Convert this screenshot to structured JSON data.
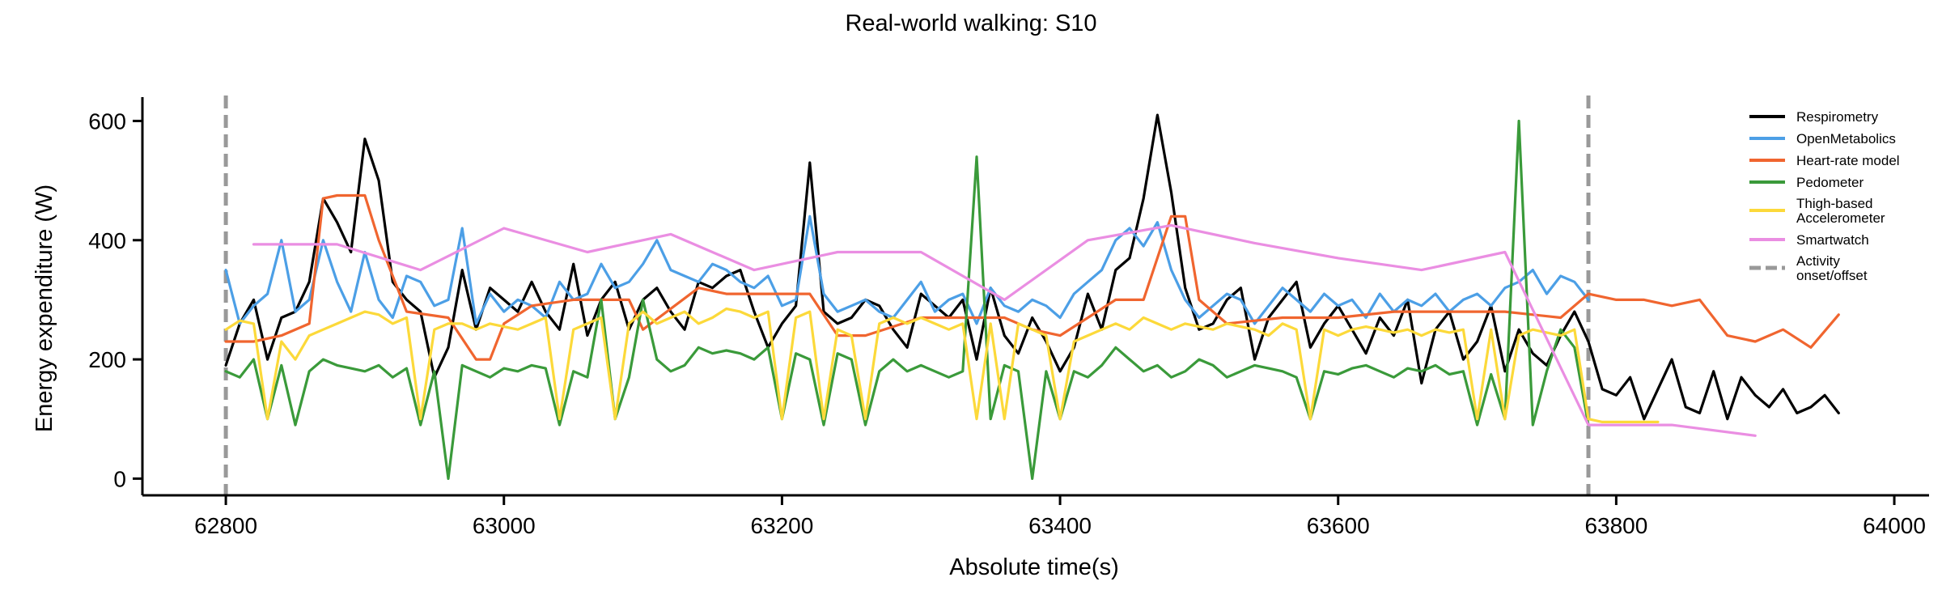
{
  "chart_data": {
    "type": "line",
    "title": "Real-world walking: S10",
    "xlabel": "Absolute time(s)",
    "ylabel": "Energy expenditure (W)",
    "xlim": [
      62740,
      64025
    ],
    "ylim": [
      -28,
      640
    ],
    "xticks": [
      62800,
      63000,
      63200,
      63400,
      63600,
      63800,
      64000
    ],
    "yticks": [
      0,
      200,
      400,
      600
    ],
    "grid": false,
    "legend_position": "top-right",
    "activity_markers": {
      "label": "Activity\nonset/offset",
      "x": [
        62800,
        63780
      ],
      "color": "#999999"
    },
    "series": [
      {
        "name": "Respirometry",
        "color": "#000000",
        "x": [
          62800,
          62810,
          62820,
          62830,
          62840,
          62850,
          62860,
          62870,
          62880,
          62890,
          62900,
          62910,
          62920,
          62930,
          62940,
          62950,
          62960,
          62970,
          62980,
          62990,
          63000,
          63010,
          63020,
          63030,
          63040,
          63050,
          63060,
          63070,
          63080,
          63090,
          63100,
          63110,
          63120,
          63130,
          63140,
          63150,
          63160,
          63170,
          63180,
          63190,
          63200,
          63210,
          63220,
          63230,
          63240,
          63250,
          63260,
          63270,
          63280,
          63290,
          63300,
          63310,
          63320,
          63330,
          63340,
          63350,
          63360,
          63370,
          63380,
          63390,
          63400,
          63410,
          63420,
          63430,
          63440,
          63450,
          63460,
          63470,
          63480,
          63490,
          63500,
          63510,
          63520,
          63530,
          63540,
          63550,
          63560,
          63570,
          63580,
          63590,
          63600,
          63610,
          63620,
          63630,
          63640,
          63650,
          63660,
          63670,
          63680,
          63690,
          63700,
          63710,
          63720,
          63730,
          63740,
          63750,
          63760,
          63770,
          63780,
          63790,
          63800,
          63810,
          63820,
          63830,
          63840,
          63850,
          63860,
          63870,
          63880,
          63890,
          63900,
          63910,
          63920,
          63930,
          63940,
          63950,
          63960
        ],
        "values": [
          190,
          260,
          300,
          200,
          270,
          280,
          330,
          470,
          430,
          380,
          570,
          500,
          330,
          300,
          280,
          170,
          220,
          350,
          250,
          320,
          300,
          280,
          330,
          280,
          250,
          360,
          240,
          300,
          330,
          250,
          300,
          320,
          280,
          250,
          330,
          320,
          340,
          350,
          280,
          220,
          260,
          290,
          530,
          280,
          260,
          270,
          300,
          290,
          250,
          220,
          310,
          290,
          270,
          300,
          200,
          320,
          240,
          210,
          270,
          230,
          180,
          220,
          310,
          250,
          350,
          370,
          470,
          610,
          480,
          320,
          250,
          260,
          300,
          320,
          200,
          270,
          300,
          330,
          220,
          260,
          290,
          250,
          210,
          270,
          240,
          300,
          160,
          250,
          280,
          200,
          230,
          290,
          180,
          250,
          210,
          190,
          240,
          280,
          230,
          150,
          140,
          170,
          100,
          150,
          200,
          120,
          110,
          180,
          100,
          170,
          140,
          120,
          150,
          110,
          120,
          140,
          110
        ]
      },
      {
        "name": "OpenMetabolics",
        "color": "#4c9fe6",
        "x": [
          62800,
          62810,
          62820,
          62830,
          62840,
          62850,
          62860,
          62870,
          62880,
          62890,
          62900,
          62910,
          62920,
          62930,
          62940,
          62950,
          62960,
          62970,
          62980,
          62990,
          63000,
          63010,
          63020,
          63030,
          63040,
          63050,
          63060,
          63070,
          63080,
          63090,
          63100,
          63110,
          63120,
          63130,
          63140,
          63150,
          63160,
          63170,
          63180,
          63190,
          63200,
          63210,
          63220,
          63230,
          63240,
          63250,
          63260,
          63270,
          63280,
          63290,
          63300,
          63310,
          63320,
          63330,
          63340,
          63350,
          63360,
          63370,
          63380,
          63390,
          63400,
          63410,
          63420,
          63430,
          63440,
          63450,
          63460,
          63470,
          63480,
          63490,
          63500,
          63510,
          63520,
          63530,
          63540,
          63550,
          63560,
          63570,
          63580,
          63590,
          63600,
          63610,
          63620,
          63630,
          63640,
          63650,
          63660,
          63670,
          63680,
          63690,
          63700,
          63710,
          63720,
          63730,
          63740,
          63750,
          63760,
          63770,
          63780
        ],
        "values": [
          350,
          260,
          290,
          310,
          400,
          280,
          300,
          400,
          330,
          280,
          380,
          300,
          270,
          340,
          330,
          290,
          300,
          420,
          260,
          310,
          280,
          300,
          290,
          270,
          330,
          300,
          310,
          360,
          320,
          330,
          360,
          400,
          350,
          340,
          330,
          360,
          350,
          330,
          320,
          340,
          290,
          300,
          440,
          310,
          280,
          290,
          300,
          280,
          270,
          300,
          330,
          280,
          300,
          310,
          260,
          320,
          290,
          280,
          300,
          290,
          270,
          310,
          330,
          350,
          400,
          420,
          390,
          430,
          350,
          300,
          270,
          290,
          310,
          300,
          260,
          290,
          320,
          300,
          280,
          310,
          290,
          300,
          270,
          310,
          280,
          300,
          290,
          310,
          280,
          300,
          310,
          290,
          320,
          330,
          350,
          310,
          340,
          330,
          300
        ]
      },
      {
        "name": "Heart-rate model",
        "color": "#f0652f",
        "x": [
          62800,
          62820,
          62840,
          62860,
          62870,
          62880,
          62900,
          62910,
          62930,
          62960,
          62980,
          62990,
          63000,
          63020,
          63050,
          63090,
          63100,
          63140,
          63160,
          63200,
          63220,
          63240,
          63260,
          63300,
          63340,
          63360,
          63380,
          63400,
          63440,
          63460,
          63480,
          63490,
          63500,
          63520,
          63560,
          63600,
          63640,
          63680,
          63720,
          63760,
          63780,
          63800,
          63820,
          63840,
          63860,
          63880,
          63900,
          63920,
          63940,
          63960
        ],
        "values": [
          230,
          230,
          240,
          260,
          470,
          475,
          475,
          400,
          280,
          270,
          200,
          200,
          260,
          290,
          300,
          300,
          250,
          320,
          310,
          310,
          310,
          240,
          240,
          270,
          270,
          270,
          250,
          240,
          300,
          300,
          440,
          440,
          300,
          260,
          270,
          270,
          280,
          280,
          280,
          270,
          310,
          300,
          300,
          290,
          300,
          240,
          230,
          250,
          220,
          275
        ]
      },
      {
        "name": "Pedometer",
        "color": "#3a9a3a",
        "x": [
          62800,
          62810,
          62820,
          62830,
          62840,
          62850,
          62860,
          62870,
          62880,
          62890,
          62900,
          62910,
          62920,
          62930,
          62940,
          62950,
          62960,
          62970,
          62980,
          62990,
          63000,
          63010,
          63020,
          63030,
          63040,
          63050,
          63060,
          63070,
          63080,
          63090,
          63100,
          63110,
          63120,
          63130,
          63140,
          63150,
          63160,
          63170,
          63180,
          63190,
          63200,
          63210,
          63220,
          63230,
          63240,
          63250,
          63260,
          63270,
          63280,
          63290,
          63300,
          63310,
          63320,
          63330,
          63340,
          63350,
          63360,
          63370,
          63380,
          63390,
          63400,
          63410,
          63420,
          63430,
          63440,
          63450,
          63460,
          63470,
          63480,
          63490,
          63500,
          63510,
          63520,
          63530,
          63540,
          63550,
          63560,
          63570,
          63580,
          63590,
          63600,
          63610,
          63620,
          63630,
          63640,
          63650,
          63660,
          63670,
          63680,
          63690,
          63700,
          63710,
          63720,
          63730,
          63740,
          63750,
          63760,
          63770,
          63780
        ],
        "values": [
          180,
          170,
          200,
          100,
          190,
          90,
          180,
          200,
          190,
          185,
          180,
          190,
          170,
          185,
          90,
          180,
          0,
          190,
          180,
          170,
          185,
          180,
          190,
          185,
          90,
          180,
          170,
          300,
          100,
          170,
          300,
          200,
          180,
          190,
          220,
          210,
          215,
          210,
          200,
          220,
          100,
          210,
          200,
          90,
          210,
          200,
          90,
          180,
          200,
          180,
          190,
          180,
          170,
          180,
          540,
          100,
          190,
          180,
          0,
          180,
          100,
          180,
          170,
          190,
          220,
          200,
          180,
          190,
          170,
          180,
          200,
          190,
          170,
          180,
          190,
          185,
          180,
          170,
          100,
          180,
          175,
          185,
          190,
          180,
          170,
          185,
          180,
          190,
          175,
          180,
          90,
          175,
          100,
          600,
          90,
          180,
          250,
          220,
          90
        ]
      },
      {
        "name": "Thigh-based\nAccelerometer",
        "color": "#fcd93a",
        "x": [
          62800,
          62810,
          62820,
          62830,
          62840,
          62850,
          62860,
          62870,
          62880,
          62890,
          62900,
          62910,
          62920,
          62930,
          62940,
          62950,
          62960,
          62970,
          62980,
          62990,
          63000,
          63010,
          63020,
          63030,
          63040,
          63050,
          63060,
          63070,
          63080,
          63090,
          63100,
          63110,
          63120,
          63130,
          63140,
          63150,
          63160,
          63170,
          63180,
          63190,
          63200,
          63210,
          63220,
          63230,
          63240,
          63250,
          63260,
          63270,
          63280,
          63290,
          63300,
          63310,
          63320,
          63330,
          63340,
          63350,
          63360,
          63370,
          63380,
          63390,
          63400,
          63410,
          63420,
          63430,
          63440,
          63450,
          63460,
          63470,
          63480,
          63490,
          63500,
          63510,
          63520,
          63530,
          63540,
          63550,
          63560,
          63570,
          63580,
          63590,
          63600,
          63610,
          63620,
          63630,
          63640,
          63650,
          63660,
          63670,
          63680,
          63690,
          63700,
          63710,
          63720,
          63730,
          63740,
          63750,
          63760,
          63770,
          63780,
          63790,
          63800,
          63810,
          63820,
          63830
        ],
        "values": [
          250,
          265,
          260,
          100,
          230,
          200,
          240,
          250,
          260,
          270,
          280,
          275,
          260,
          270,
          100,
          250,
          260,
          260,
          250,
          260,
          255,
          250,
          260,
          270,
          100,
          250,
          260,
          270,
          100,
          260,
          280,
          260,
          270,
          280,
          260,
          270,
          285,
          280,
          270,
          280,
          100,
          270,
          280,
          100,
          250,
          240,
          100,
          260,
          270,
          260,
          270,
          260,
          250,
          260,
          100,
          260,
          100,
          260,
          250,
          240,
          100,
          230,
          240,
          250,
          260,
          250,
          270,
          260,
          250,
          260,
          255,
          250,
          260,
          255,
          250,
          240,
          260,
          250,
          100,
          250,
          240,
          250,
          255,
          250,
          245,
          250,
          240,
          250,
          245,
          250,
          100,
          250,
          100,
          240,
          250,
          245,
          240,
          250,
          100,
          95,
          95,
          95,
          95,
          95
        ]
      },
      {
        "name": "Smartwatch",
        "color": "#ea8ee2",
        "x": [
          62820,
          62880,
          62940,
          63000,
          63060,
          63120,
          63180,
          63240,
          63300,
          63360,
          63420,
          63480,
          63540,
          63600,
          63660,
          63720,
          63780,
          63840,
          63900
        ],
        "values": [
          393,
          393,
          350,
          420,
          380,
          410,
          350,
          380,
          380,
          300,
          400,
          425,
          395,
          370,
          350,
          380,
          90,
          90,
          72
        ]
      }
    ]
  }
}
